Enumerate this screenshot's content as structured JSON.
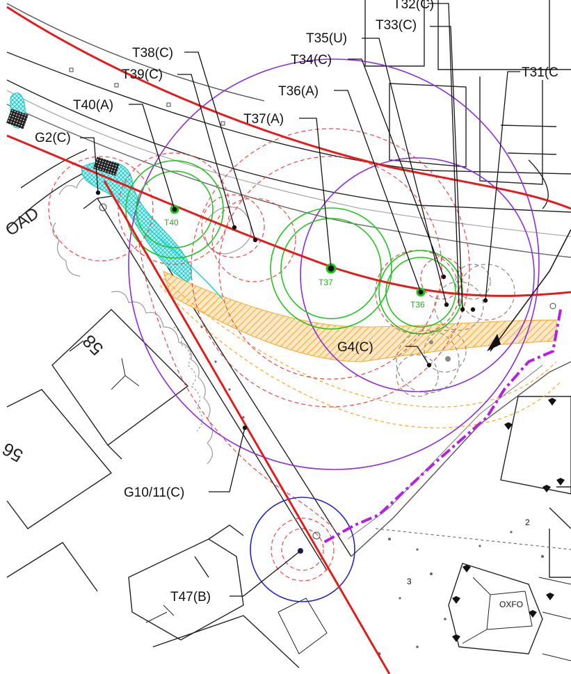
{
  "tree_labels": {
    "t32": "T32(C)",
    "t33": "T33(C)",
    "t35": "T35(U)",
    "t34": "T34(C)",
    "t31": "T31(C",
    "t38": "T38(C)",
    "t39": "T39(C)",
    "t36": "T36(A)",
    "t40": "T40(A)",
    "t37": "T37(A)",
    "g2": "G2(C)",
    "g4": "G4(C)",
    "g10": "G10/11(C)",
    "t47": "T47(B)"
  },
  "tree_tags": {
    "t40": "T40",
    "t37": "T37",
    "t36": "T36"
  },
  "property_labels": {
    "house58": "58",
    "house56": "56",
    "plot2": "2",
    "plot3": "3",
    "oxfo": "OXFO"
  },
  "road_label": "OAD",
  "colors": {
    "boundary": "#e31b1b",
    "canopy_green": "#22c322",
    "rpa_red_dashed": "#ee4444",
    "purple": "#8a2be2",
    "blue": "#2222cc",
    "cyan": "#19d3d3",
    "orange_hatch": "#f5a623",
    "magenta_route": "#b620e0",
    "grey": "#888888"
  }
}
